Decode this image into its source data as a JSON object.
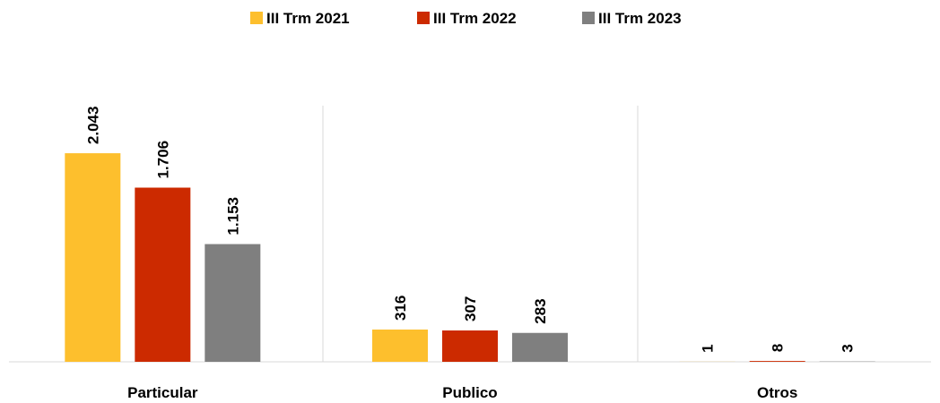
{
  "chart_data": {
    "type": "bar",
    "categories": [
      "Particular",
      "Publico",
      "Otros"
    ],
    "series": [
      {
        "name": "III Trm 2021",
        "color": "#FDBF2D",
        "values": [
          2043,
          316,
          1
        ],
        "value_labels": [
          "2.043",
          "316",
          "1"
        ]
      },
      {
        "name": "III Trm 2022",
        "color": "#CC2A00",
        "values": [
          1706,
          307,
          8
        ],
        "value_labels": [
          "1.706",
          "307",
          "8"
        ]
      },
      {
        "name": "III Trm 2023",
        "color": "#7F7F7F",
        "values": [
          1153,
          283,
          3
        ],
        "value_labels": [
          "1.153",
          "283",
          "3"
        ]
      }
    ]
  }
}
